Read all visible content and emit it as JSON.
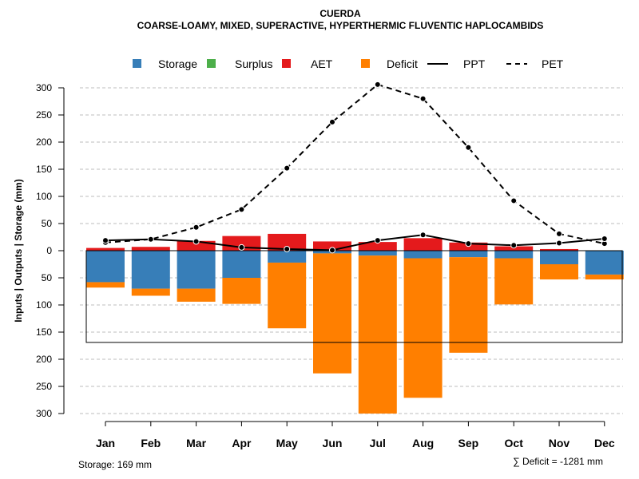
{
  "chart_data": {
    "type": "bar",
    "title": "CUERDA",
    "subtitle": "COARSE-LOAMY, MIXED, SUPERACTIVE, HYPERTHERMIC FLUVENTIC HAPLOCAMBIDS",
    "ylabel": "Inputs | Outputs | Storage    (mm)",
    "xlabel": "",
    "categories": [
      "Jan",
      "Feb",
      "Mar",
      "Apr",
      "May",
      "Jun",
      "Jul",
      "Aug",
      "Sep",
      "Oct",
      "Nov",
      "Dec"
    ],
    "ylim": [
      -300,
      300
    ],
    "yticks": [
      300,
      250,
      200,
      150,
      100,
      50,
      0,
      -50,
      -100,
      -150,
      -200,
      -250,
      -300
    ],
    "ytick_labels": [
      "300",
      "250",
      "200",
      "150",
      "100",
      "50",
      "0",
      "50",
      "100",
      "150",
      "200",
      "250",
      "300"
    ],
    "legend": [
      {
        "label": "Storage",
        "kind": "box",
        "color": "#377EB8"
      },
      {
        "label": "Surplus",
        "kind": "box",
        "color": "#4DAF4A"
      },
      {
        "label": "AET",
        "kind": "box",
        "color": "#E41A1C"
      },
      {
        "label": "Deficit",
        "kind": "box",
        "color": "#FF7F00"
      },
      {
        "label": "PPT",
        "kind": "solid-line",
        "color": "#000000"
      },
      {
        "label": "PET",
        "kind": "dashed-line",
        "color": "#000000"
      }
    ],
    "legend_position": "top",
    "series": [
      {
        "name": "AET",
        "color": "#E41A1C",
        "direction": "up",
        "values": [
          5,
          7,
          18,
          27,
          31,
          17,
          16,
          23,
          15,
          8,
          3,
          0
        ]
      },
      {
        "name": "Storage",
        "color": "#377EB8",
        "direction": "down",
        "values": [
          58,
          70,
          70,
          50,
          22,
          5,
          9,
          14,
          12,
          14,
          25,
          44
        ]
      },
      {
        "name": "Deficit",
        "color": "#FF7F00",
        "direction": "down",
        "values": [
          10,
          13,
          24,
          48,
          121,
          221,
          291,
          257,
          176,
          85,
          28,
          9
        ]
      },
      {
        "name": "Surplus",
        "color": "#4DAF4A",
        "direction": "up",
        "values": [
          0,
          0,
          0,
          0,
          0,
          0,
          0,
          0,
          0,
          0,
          0,
          0
        ]
      },
      {
        "name": "PPT",
        "color": "#000000",
        "style": "solid",
        "values": [
          19,
          21,
          17,
          6,
          3,
          1,
          19,
          29,
          13,
          10,
          14,
          22
        ]
      },
      {
        "name": "PET",
        "color": "#000000",
        "style": "dashed",
        "values": [
          15,
          21,
          43,
          76,
          152,
          237,
          306,
          280,
          190,
          92,
          31,
          13
        ]
      }
    ],
    "storage_capacity": 169,
    "grid": true
  },
  "footer": {
    "storage_note": "Storage: 169 mm",
    "deficit_note": "∑ Deficit = -1281 mm"
  }
}
